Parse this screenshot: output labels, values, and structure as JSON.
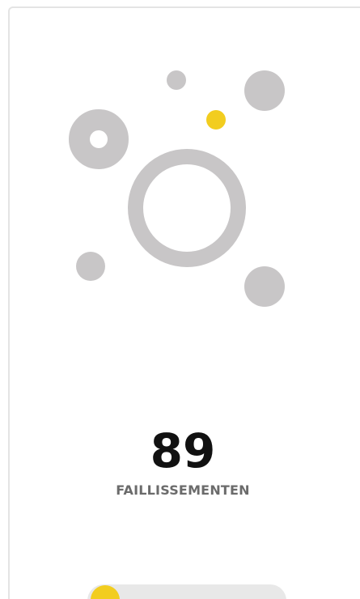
{
  "stat": {
    "value": 89,
    "label": "FAILLISSEMENTEN"
  }
}
